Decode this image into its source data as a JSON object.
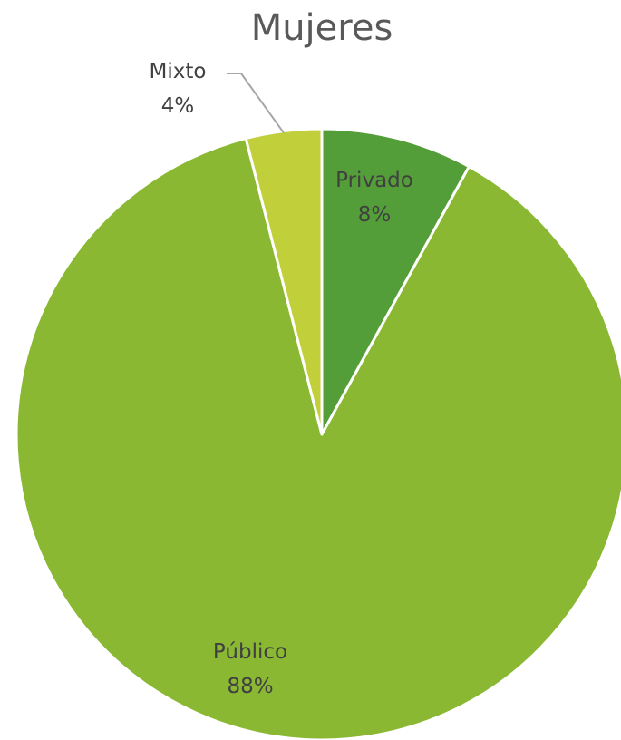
{
  "chart_data": {
    "type": "pie",
    "title": "Mujeres",
    "slices": [
      {
        "label": "Privado",
        "value": 8,
        "display": "8%",
        "color": "#549e39"
      },
      {
        "label": "Público",
        "value": 88,
        "display": "88%",
        "color": "#8ab833"
      },
      {
        "label": "Mixto",
        "value": 4,
        "display": "4%",
        "color": "#c0cf3a"
      }
    ],
    "start": "12 o'clock",
    "direction": "clockwise",
    "legend": "none"
  }
}
